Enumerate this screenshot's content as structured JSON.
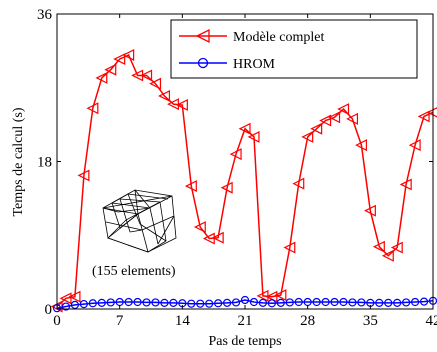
{
  "chart_data": {
    "type": "line",
    "xlabel": "Pas de temps",
    "ylabel": "Temps de calcul (s)",
    "xlim": [
      0,
      42
    ],
    "ylim": [
      0,
      36
    ],
    "xticks": [
      "0",
      "7",
      "14",
      "21",
      "28",
      "35",
      "42"
    ],
    "yticks": [
      "0",
      "18",
      "36"
    ],
    "grid": false,
    "legend_position": "top-right",
    "annotation": "(155 elements)",
    "series": [
      {
        "name": "Modèle complet",
        "color": "#ff0000",
        "marker": "triangle-left",
        "x": [
          0,
          1,
          2,
          3,
          4,
          5,
          6,
          7,
          8,
          9,
          10,
          11,
          12,
          13,
          14,
          15,
          16,
          17,
          18,
          19,
          20,
          21,
          22,
          23,
          24,
          25,
          26,
          27,
          28,
          29,
          30,
          31,
          32,
          33,
          34,
          35,
          36,
          37,
          38,
          39,
          40,
          41,
          42
        ],
        "y": [
          0.3,
          1.3,
          1.5,
          16.3,
          24.5,
          28.2,
          29.2,
          30.5,
          31.0,
          28.5,
          28.5,
          27.5,
          26.0,
          25.0,
          24.9,
          15.0,
          10.0,
          8.6,
          8.7,
          14.8,
          18.9,
          22.0,
          21.0,
          1.6,
          1.5,
          1.7,
          7.5,
          15.3,
          21.0,
          22.0,
          23.0,
          23.4,
          24.4,
          23.2,
          20.0,
          12.0,
          7.6,
          6.5,
          7.5,
          15.2,
          20.0,
          23.5,
          24.0
        ]
      },
      {
        "name": "HROM",
        "color": "#0000ff",
        "marker": "circle",
        "x": [
          0,
          1,
          2,
          3,
          4,
          5,
          6,
          7,
          8,
          9,
          10,
          11,
          12,
          13,
          14,
          15,
          16,
          17,
          18,
          19,
          20,
          21,
          22,
          23,
          24,
          25,
          26,
          27,
          28,
          29,
          30,
          31,
          32,
          33,
          34,
          35,
          36,
          37,
          38,
          39,
          40,
          41,
          42
        ],
        "y": [
          0.1,
          0.3,
          0.5,
          0.6,
          0.7,
          0.75,
          0.8,
          0.85,
          0.85,
          0.85,
          0.8,
          0.8,
          0.75,
          0.75,
          0.7,
          0.65,
          0.65,
          0.65,
          0.7,
          0.75,
          0.8,
          1.1,
          0.85,
          0.75,
          0.7,
          0.75,
          0.8,
          0.85,
          0.85,
          0.85,
          0.85,
          0.85,
          0.85,
          0.8,
          0.8,
          0.75,
          0.75,
          0.75,
          0.75,
          0.8,
          0.85,
          0.9,
          1.0
        ]
      }
    ]
  }
}
